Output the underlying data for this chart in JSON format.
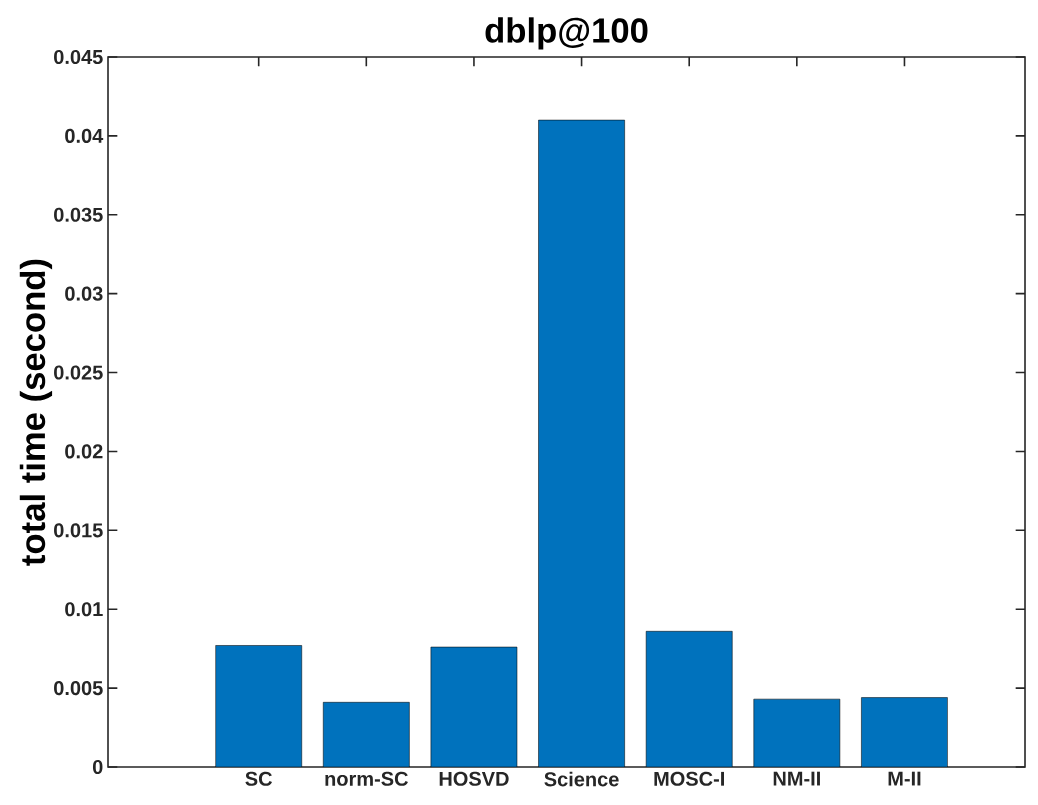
{
  "chart_data": {
    "type": "bar",
    "title": "dblp@100",
    "ylabel": "total time (second)",
    "categories": [
      "SC",
      "norm-SC",
      "HOSVD",
      "Science",
      "MOSC-I",
      "NM-II",
      "M-II"
    ],
    "values": [
      0.0077,
      0.0041,
      0.0076,
      0.041,
      0.0086,
      0.0043,
      0.0044
    ],
    "color": "#0072bd",
    "ylim": [
      0,
      0.045
    ],
    "yticks": [
      0,
      0.005,
      0.01,
      0.015,
      0.02,
      0.025,
      0.03,
      0.035,
      0.04,
      0.045
    ],
    "grid": false
  }
}
